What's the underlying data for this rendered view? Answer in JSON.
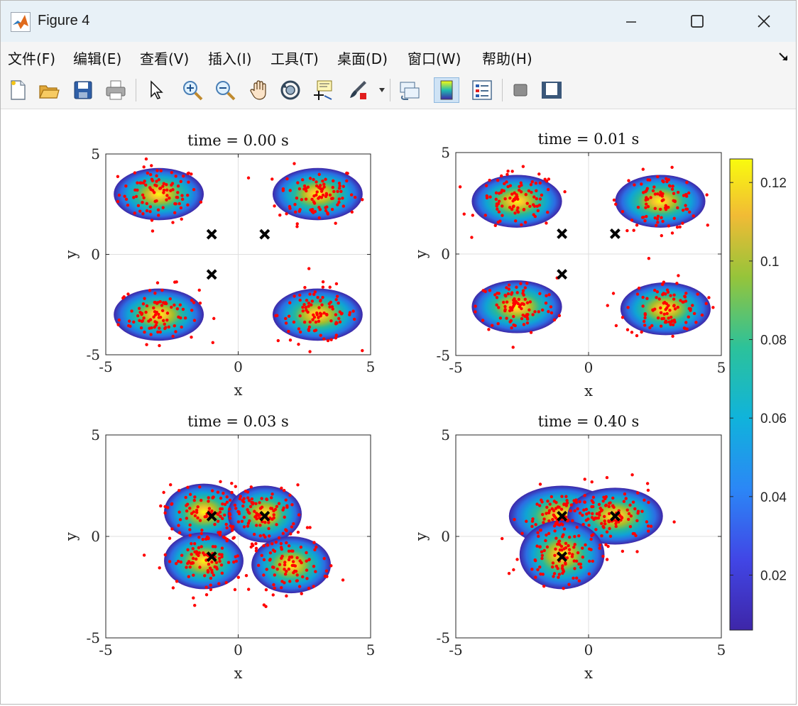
{
  "window": {
    "title": "Figure 4",
    "app_icon": "matlab-logo-icon",
    "controls": [
      "minimize-icon",
      "maximize-icon",
      "close-icon"
    ]
  },
  "menu": [
    "文件(F)",
    "编辑(E)",
    "查看(V)",
    "插入(I)",
    "工具(T)",
    "桌面(D)",
    "窗口(W)",
    "帮助(H)"
  ],
  "toolbar": [
    "new-figure-icon",
    "open-file-icon",
    "save-icon",
    "print-icon",
    "pointer-icon",
    "zoom-in-icon",
    "zoom-out-icon",
    "pan-icon",
    "rotate-3d-icon",
    "data-cursor-icon",
    "brush-icon",
    "link-plot-icon",
    "colorbar-icon",
    "legend-icon",
    "hide-plot-tools-icon",
    "show-plot-tools-icon"
  ],
  "colors": {
    "points": "#ff0000",
    "markers": "#000000",
    "grid": "#dfdfdf",
    "colormap_low": "#3e26a8",
    "colormap_high": "#f9fb0e"
  },
  "chart_data": [
    {
      "type": "heatmap",
      "title": "time = 0.00 s",
      "xlabel": "x",
      "ylabel": "y",
      "xlim": [
        -5,
        5
      ],
      "ylim": [
        -5,
        5
      ],
      "xticks": [
        "-5",
        "0",
        "5"
      ],
      "yticks": [
        "-5",
        "0",
        "5"
      ],
      "grid": true,
      "density_blobs": [
        {
          "center": [
            -3,
            3
          ],
          "radius": [
            1.7,
            1.3
          ]
        },
        {
          "center": [
            3,
            3
          ],
          "radius": [
            1.7,
            1.3
          ]
        },
        {
          "center": [
            -3,
            -3
          ],
          "radius": [
            1.7,
            1.3
          ]
        },
        {
          "center": [
            3,
            -3
          ],
          "radius": [
            1.7,
            1.3
          ]
        }
      ],
      "sample_clusters": [
        [
          -3,
          3
        ],
        [
          3,
          3
        ],
        [
          -3,
          -3
        ],
        [
          3,
          -3
        ]
      ],
      "markers": [
        [
          -1,
          1
        ],
        [
          1,
          1
        ],
        [
          -1,
          -1
        ]
      ]
    },
    {
      "type": "heatmap",
      "title": "time = 0.01 s",
      "xlabel": "x",
      "ylabel": "y",
      "xlim": [
        -5,
        5
      ],
      "ylim": [
        -5,
        5
      ],
      "xticks": [
        "-5",
        "0",
        "5"
      ],
      "yticks": [
        "-5",
        "0",
        "5"
      ],
      "grid": true,
      "density_blobs": [
        {
          "center": [
            -2.7,
            2.6
          ],
          "radius": [
            1.7,
            1.3
          ]
        },
        {
          "center": [
            2.7,
            2.6
          ],
          "radius": [
            1.7,
            1.3
          ]
        },
        {
          "center": [
            -2.7,
            -2.6
          ],
          "radius": [
            1.7,
            1.3
          ]
        },
        {
          "center": [
            2.9,
            -2.7
          ],
          "radius": [
            1.7,
            1.3
          ]
        }
      ],
      "sample_clusters": [
        [
          -2.7,
          2.6
        ],
        [
          2.7,
          2.6
        ],
        [
          -2.7,
          -2.6
        ],
        [
          2.9,
          -2.7
        ]
      ],
      "markers": [
        [
          -1,
          1
        ],
        [
          1,
          1
        ],
        [
          -1,
          -1
        ]
      ]
    },
    {
      "type": "heatmap",
      "title": "time = 0.03 s",
      "xlabel": "x",
      "ylabel": "y",
      "xlim": [
        -5,
        5
      ],
      "ylim": [
        -5,
        5
      ],
      "xticks": [
        "-5",
        "0",
        "5"
      ],
      "yticks": [
        "-5",
        "0",
        "5"
      ],
      "grid": true,
      "density_blobs": [
        {
          "center": [
            -1.3,
            1.2
          ],
          "radius": [
            1.5,
            1.4
          ]
        },
        {
          "center": [
            1.0,
            1.1
          ],
          "radius": [
            1.4,
            1.4
          ]
        },
        {
          "center": [
            -1.3,
            -1.2
          ],
          "radius": [
            1.5,
            1.4
          ]
        },
        {
          "center": [
            2.0,
            -1.4
          ],
          "radius": [
            1.5,
            1.4
          ]
        }
      ],
      "sample_clusters": [
        [
          -1.3,
          1.2
        ],
        [
          1.0,
          1.1
        ],
        [
          -1.3,
          -1.2
        ],
        [
          2.0,
          -1.4
        ]
      ],
      "markers": [
        [
          -1,
          1
        ],
        [
          1,
          1
        ],
        [
          -1,
          -1
        ]
      ]
    },
    {
      "type": "heatmap",
      "title": "time = 0.40 s",
      "xlabel": "x",
      "ylabel": "y",
      "xlim": [
        -5,
        5
      ],
      "ylim": [
        -5,
        5
      ],
      "xticks": [
        "-5",
        "0",
        "5"
      ],
      "yticks": [
        "-5",
        "0",
        "5"
      ],
      "grid": true,
      "density_blobs": [
        {
          "center": [
            -1.0,
            1.0
          ],
          "radius": [
            2.0,
            1.5
          ]
        },
        {
          "center": [
            1.0,
            1.0
          ],
          "radius": [
            1.8,
            1.4
          ]
        },
        {
          "center": [
            -1.0,
            -0.9
          ],
          "radius": [
            1.6,
            1.7
          ]
        }
      ],
      "sample_clusters": [
        [
          -1.0,
          1.0
        ],
        [
          1.0,
          1.0
        ],
        [
          -1.0,
          -1.0
        ]
      ],
      "markers": [
        [
          -1,
          1
        ],
        [
          1,
          1
        ],
        [
          -1,
          -1
        ]
      ]
    }
  ],
  "colorbar": {
    "ticks": [
      0.02,
      0.04,
      0.06,
      0.08,
      0.1,
      0.12
    ],
    "tick_labels": [
      "0.02",
      "0.04",
      "0.06",
      "0.08",
      "0.1",
      "0.12"
    ],
    "range": [
      0.006,
      0.126
    ]
  }
}
